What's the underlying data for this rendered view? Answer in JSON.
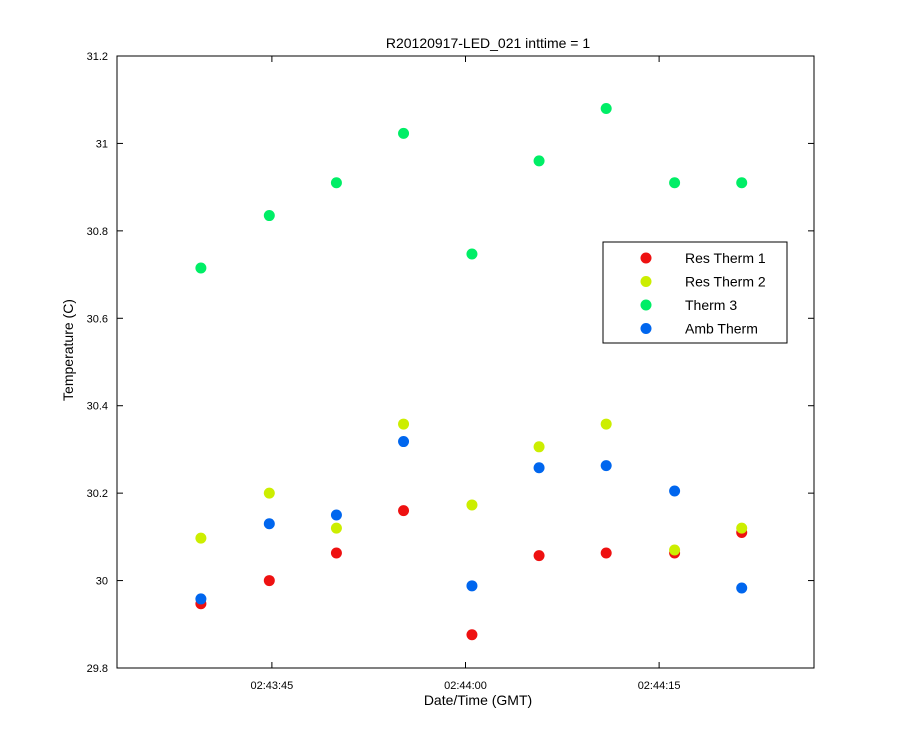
{
  "chart_data": {
    "type": "scatter",
    "title": "R20120917-LED_021 inttime = 1",
    "xlabel": "Date/Time (GMT)",
    "ylabel": "Temperature (C)",
    "xlim": [
      "02:43:33",
      "02:44:27"
    ],
    "ylim": [
      29.8,
      31.2
    ],
    "x_ticks": [
      "02:43:45",
      "02:44:00",
      "02:44:15"
    ],
    "y_ticks": [
      "29.8",
      "30",
      "30.2",
      "30.4",
      "30.6",
      "30.8",
      "31",
      "31.2"
    ],
    "grid": false,
    "legend_position": "right",
    "x": [
      "02:43:39.5",
      "02:43:44.8",
      "02:43:50.0",
      "02:43:55.2",
      "02:44:00.5",
      "02:44:05.7",
      "02:44:10.9",
      "02:44:16.2",
      "02:44:21.4"
    ],
    "series": [
      {
        "name": "Res Therm 1",
        "color": "#ee1111",
        "values": [
          29.947,
          30.0,
          30.063,
          30.16,
          29.876,
          30.057,
          30.063,
          30.063,
          30.11
        ]
      },
      {
        "name": "Res Therm 2",
        "color": "#ccee00",
        "values": [
          30.097,
          30.2,
          30.12,
          30.358,
          30.173,
          30.306,
          30.358,
          30.07,
          30.12
        ]
      },
      {
        "name": "Therm 3",
        "color": "#00ee66",
        "values": [
          30.715,
          30.835,
          30.91,
          31.023,
          30.747,
          30.96,
          31.08,
          30.91,
          30.91
        ]
      },
      {
        "name": "Amb Therm",
        "color": "#0066ee",
        "values": [
          29.958,
          30.13,
          30.15,
          30.318,
          29.988,
          30.258,
          30.263,
          30.205,
          29.983
        ]
      }
    ]
  }
}
